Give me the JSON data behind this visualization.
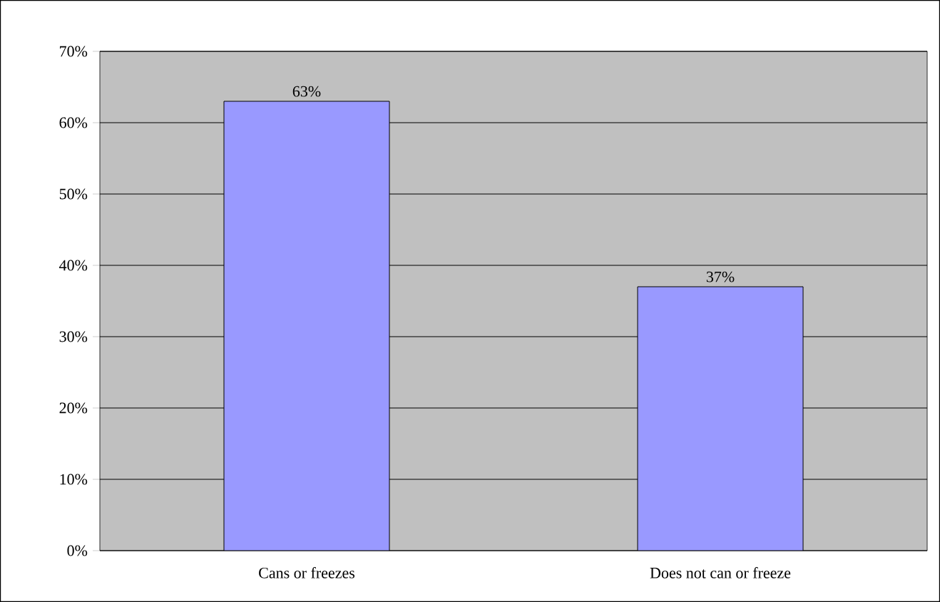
{
  "chart_data": {
    "type": "bar",
    "categories": [
      "Cans or freezes",
      "Does not can or freeze"
    ],
    "values": [
      63,
      37
    ],
    "value_labels": [
      "63%",
      "37%"
    ],
    "color": "#9999ff",
    "ylim": [
      0,
      70
    ],
    "yticks": [
      {
        "value": 0,
        "label": "0%"
      },
      {
        "value": 10,
        "label": "10%"
      },
      {
        "value": 20,
        "label": "20%"
      },
      {
        "value": 30,
        "label": "30%"
      },
      {
        "value": 40,
        "label": "40%"
      },
      {
        "value": 50,
        "label": "50%"
      },
      {
        "value": 60,
        "label": "60%"
      },
      {
        "value": 70,
        "label": "70%"
      }
    ],
    "grid": "y"
  }
}
